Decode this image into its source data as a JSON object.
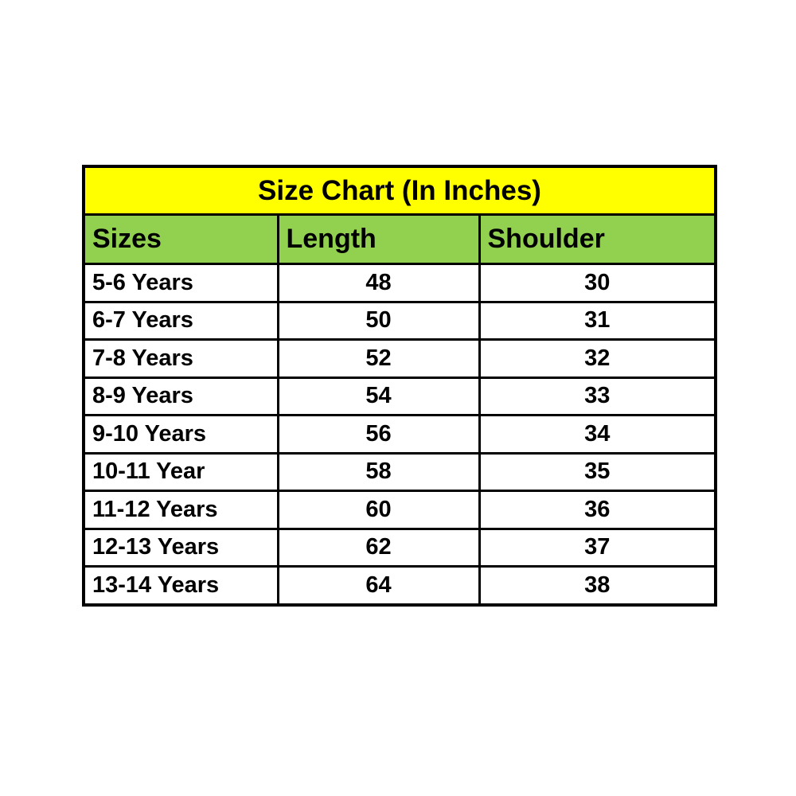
{
  "colors": {
    "title_bg": "#FFFF00",
    "header_bg": "#92D050",
    "border": "#000000",
    "text": "#000000",
    "row_bg": "#FFFFFF"
  },
  "chart_data": {
    "type": "table",
    "title": "Size Chart (In Inches)",
    "columns": [
      "Sizes",
      "Length",
      "Shoulder"
    ],
    "rows": [
      {
        "size": "5-6 Years",
        "length": "48",
        "shoulder": "30"
      },
      {
        "size": "6-7 Years",
        "length": "50",
        "shoulder": "31"
      },
      {
        "size": "7-8 Years",
        "length": "52",
        "shoulder": "32"
      },
      {
        "size": "8-9 Years",
        "length": "54",
        "shoulder": "33"
      },
      {
        "size": "9-10 Years",
        "length": "56",
        "shoulder": "34"
      },
      {
        "size": "10-11 Year",
        "length": "58",
        "shoulder": "35"
      },
      {
        "size": "11-12 Years",
        "length": "60",
        "shoulder": "36"
      },
      {
        "size": "12-13 Years",
        "length": "62",
        "shoulder": "37"
      },
      {
        "size": "13-14 Years",
        "length": "64",
        "shoulder": "38"
      }
    ]
  }
}
